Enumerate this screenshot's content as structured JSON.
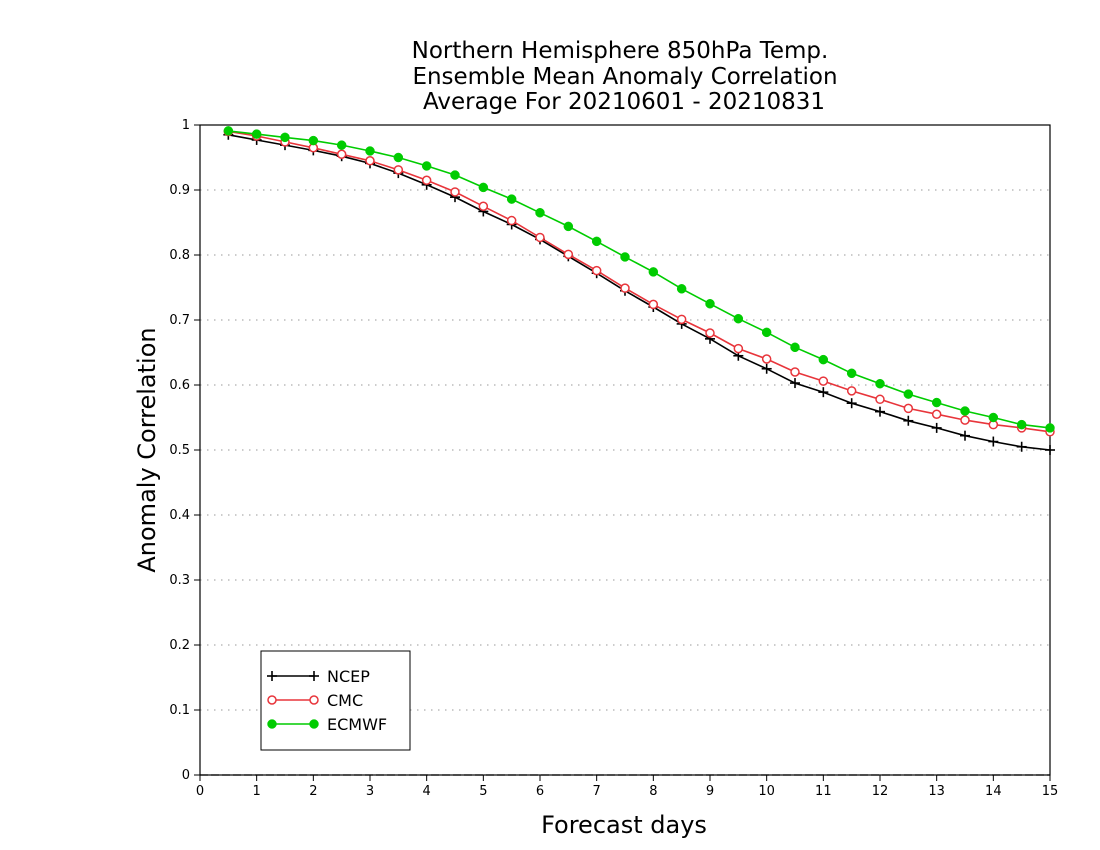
{
  "chart_data": {
    "type": "line",
    "title": [
      "Northern Hemisphere 850hPa Temp.",
      "Ensemble Mean Anomaly Correlation",
      "Average For 20210601 - 20210831"
    ],
    "xlabel": "Forecast days",
    "ylabel": "Anomaly Correlation",
    "xlim": [
      0,
      15
    ],
    "ylim": [
      0,
      1
    ],
    "xticks": [
      "0",
      "1",
      "2",
      "3",
      "4",
      "5",
      "6",
      "7",
      "8",
      "9",
      "10",
      "11",
      "12",
      "13",
      "14",
      "15"
    ],
    "yticks": [
      "0",
      "0.1",
      "0.2",
      "0.3",
      "0.4",
      "0.5",
      "0.6",
      "0.7",
      "0.8",
      "0.9",
      "1"
    ],
    "grid": "dotted horizontal",
    "legend_position": "bottom-left",
    "x": [
      0.5,
      1,
      1.5,
      2,
      2.5,
      3,
      3.5,
      4,
      4.5,
      5,
      5.5,
      6,
      6.5,
      7,
      7.5,
      8,
      8.5,
      9,
      9.5,
      10,
      10.5,
      11,
      11.5,
      12,
      12.5,
      13,
      13.5,
      14,
      14.5,
      15
    ],
    "series": [
      {
        "name": "NCEP",
        "color": "#000000",
        "marker": "plus",
        "values": [
          0.985,
          0.977,
          0.969,
          0.961,
          0.952,
          0.941,
          0.926,
          0.908,
          0.889,
          0.867,
          0.847,
          0.824,
          0.798,
          0.772,
          0.745,
          0.72,
          0.694,
          0.671,
          0.645,
          0.625,
          0.603,
          0.589,
          0.572,
          0.559,
          0.545,
          0.534,
          0.522,
          0.513,
          0.505,
          0.5
        ]
      },
      {
        "name": "CMC",
        "color": "#e8353b",
        "marker": "open-circle",
        "values": [
          0.99,
          0.983,
          0.974,
          0.965,
          0.955,
          0.945,
          0.931,
          0.915,
          0.897,
          0.875,
          0.853,
          0.827,
          0.801,
          0.776,
          0.749,
          0.724,
          0.701,
          0.68,
          0.656,
          0.64,
          0.62,
          0.606,
          0.591,
          0.578,
          0.564,
          0.555,
          0.546,
          0.539,
          0.534,
          0.528
        ]
      },
      {
        "name": "ECMWF",
        "color": "#00cc00",
        "marker": "filled-circle",
        "values": [
          0.991,
          0.986,
          0.981,
          0.976,
          0.969,
          0.96,
          0.95,
          0.937,
          0.923,
          0.904,
          0.886,
          0.865,
          0.844,
          0.821,
          0.797,
          0.774,
          0.748,
          0.725,
          0.702,
          0.681,
          0.658,
          0.639,
          0.618,
          0.602,
          0.586,
          0.573,
          0.56,
          0.55,
          0.539,
          0.534
        ]
      }
    ]
  }
}
